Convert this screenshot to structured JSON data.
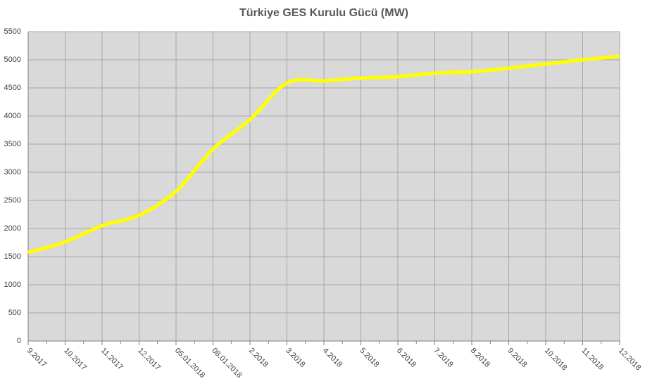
{
  "chart_data": {
    "type": "line",
    "title": "Türkiye GES Kurulu Gücü (MW)",
    "categories": [
      "9.2017",
      "10.2017",
      "11.2017",
      "12.2017",
      "05.01.2018",
      "08.01.2018",
      "2.2018",
      "3.2018",
      "4.2018",
      "5.2018",
      "6.2018",
      "7.2018",
      "8.2018",
      "9.2018",
      "10.2018",
      "11.2018",
      "12.2018"
    ],
    "series": [
      {
        "name": "GES",
        "color": "#ffff00",
        "values": [
          1575,
          1762,
          2050,
          2237,
          2662,
          3412,
          3937,
          4587,
          4625,
          4675,
          4700,
          4762,
          4787,
          4850,
          4925,
          5000,
          5062
        ]
      }
    ],
    "ylim": [
      0,
      5500
    ],
    "yticks": [
      0,
      500,
      1000,
      1500,
      2000,
      2500,
      3000,
      3500,
      4000,
      4500,
      5000,
      5500
    ],
    "grid": true,
    "smooth": true
  }
}
